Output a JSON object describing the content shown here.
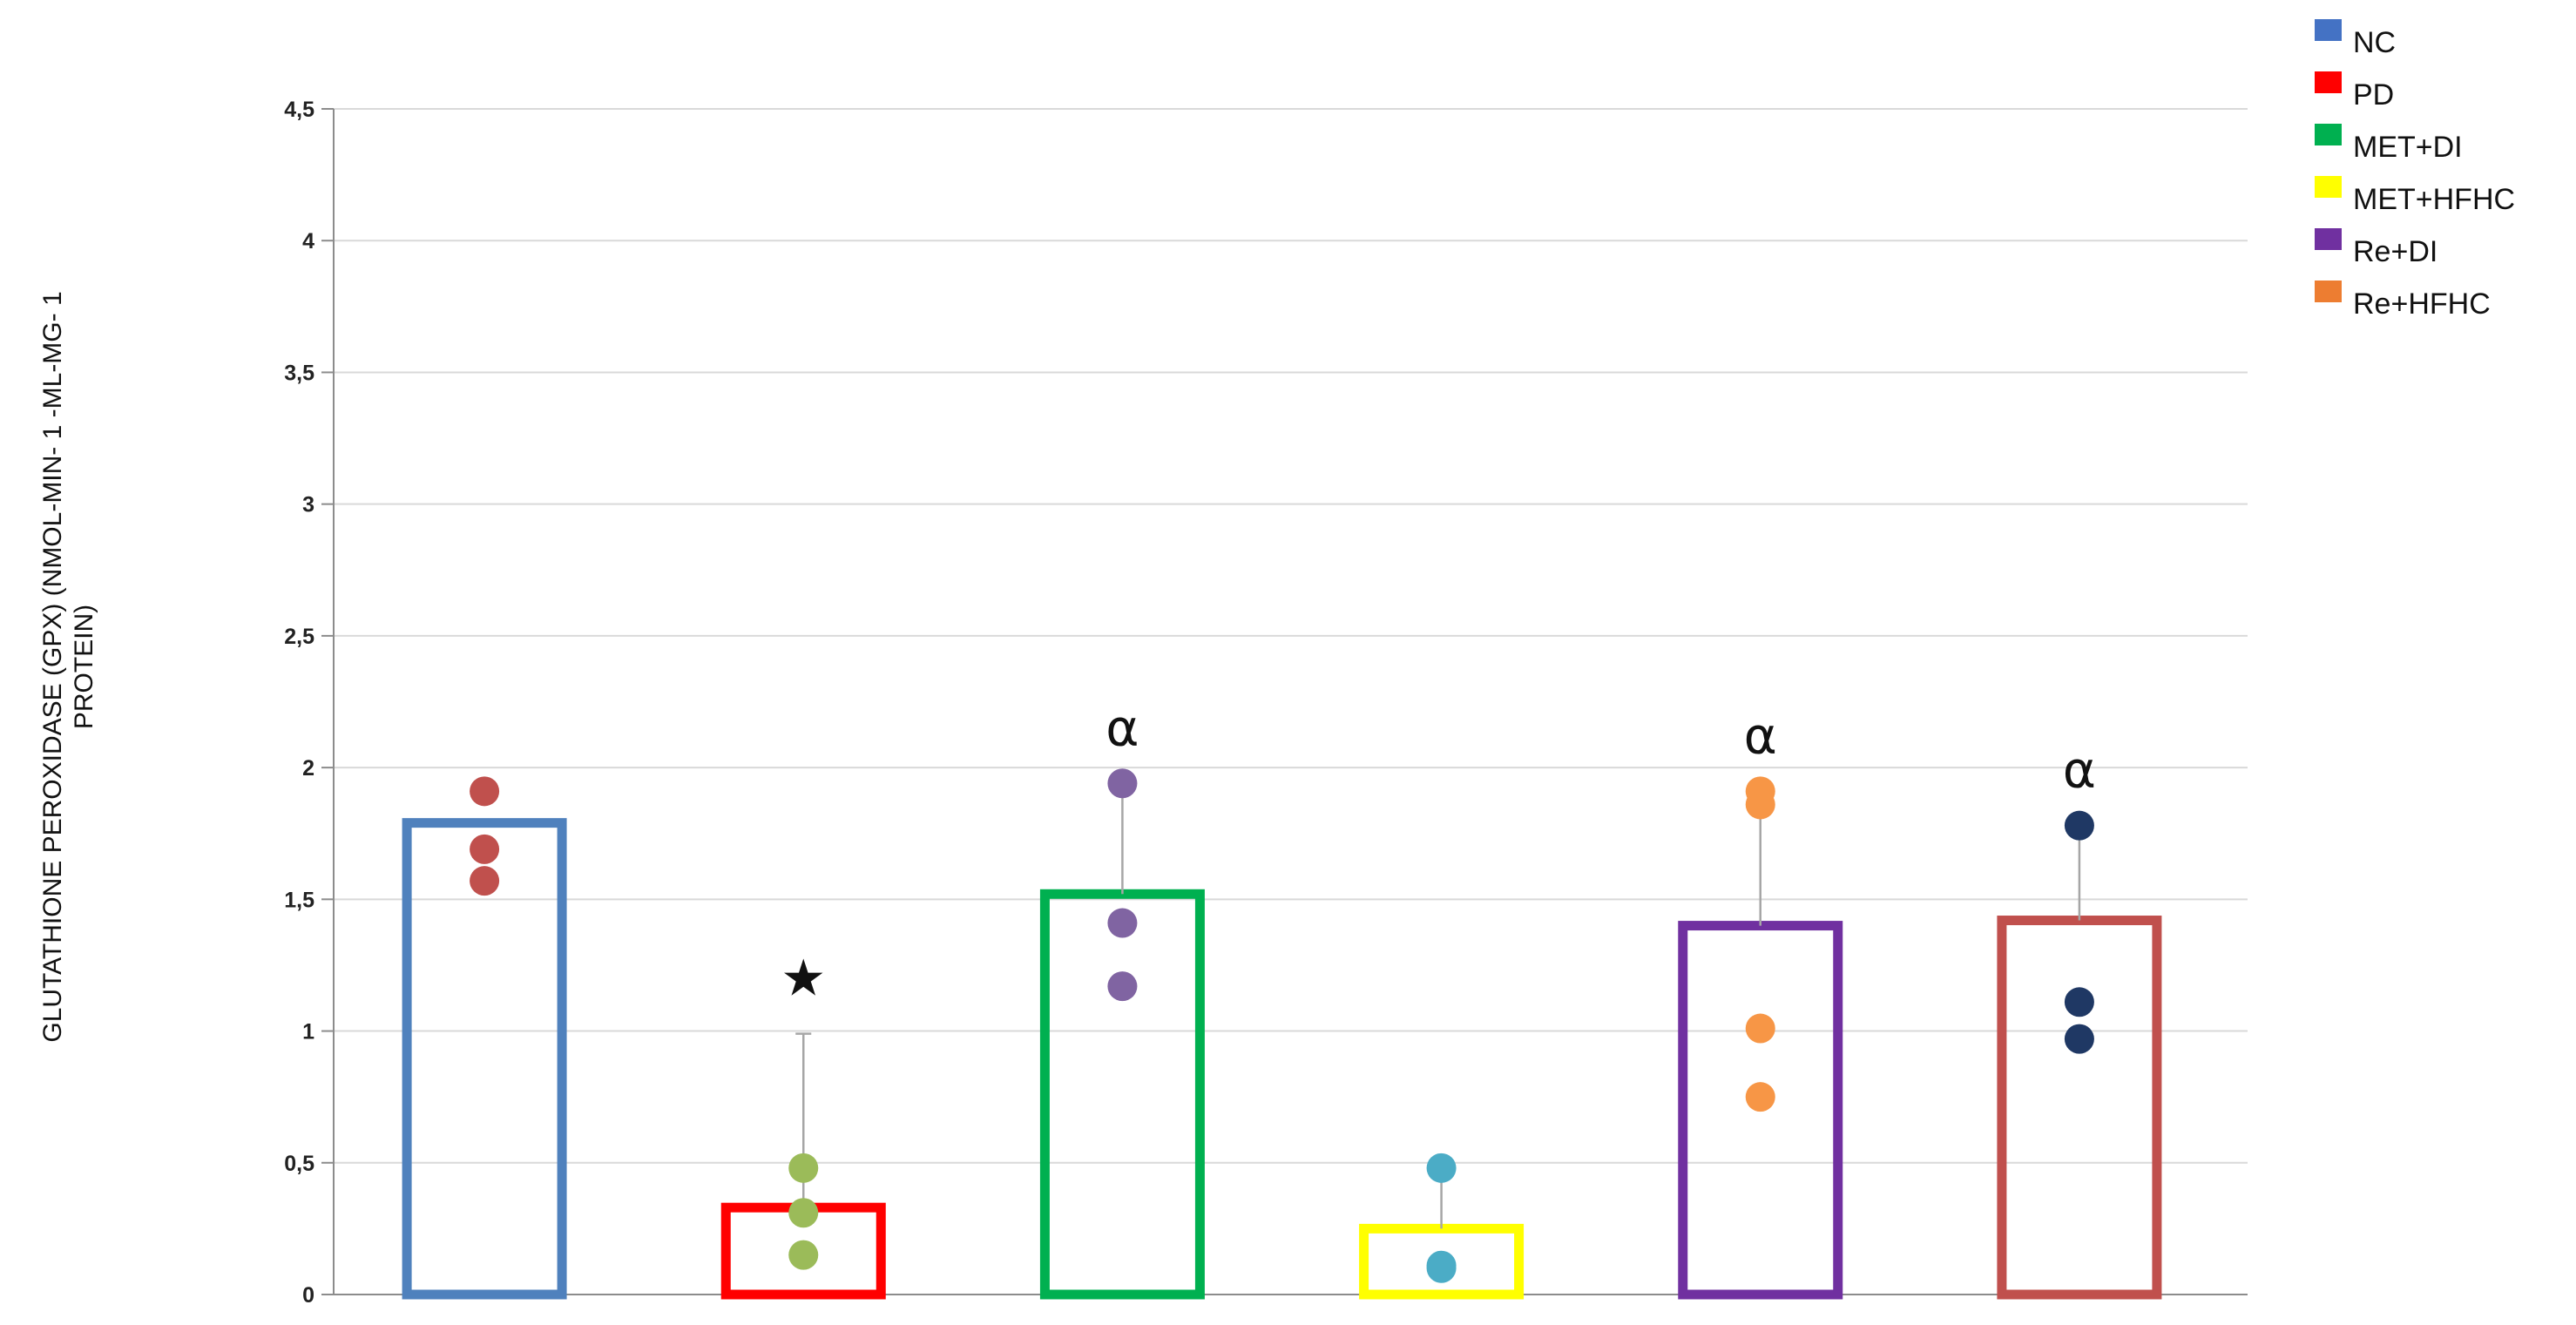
{
  "chart_data": {
    "type": "bar",
    "ylabel_lines": [
      "GLUTATHIONE PEROXIDASE (GPX) (NMOL-MIN- 1 -ML-MG- 1",
      "PROTEIN)"
    ],
    "ylim": [
      0,
      4.5
    ],
    "yticks": [
      0,
      0.5,
      1,
      1.5,
      2,
      2.5,
      3,
      3.5,
      4,
      4.5
    ],
    "ytick_labels": [
      "0",
      "0,5",
      "1",
      "1,5",
      "2",
      "2,5",
      "3",
      "3,5",
      "4",
      "4,5"
    ],
    "grid": true,
    "legend_position": "top-right",
    "legend": [
      {
        "label": "NC",
        "color": "#4472c4"
      },
      {
        "label": "PD",
        "color": "#ff0000"
      },
      {
        "label": "MET+DI",
        "color": "#00b050"
      },
      {
        "label": "MET+HFHC",
        "color": "#ffff00"
      },
      {
        "label": "Re+DI",
        "color": "#7030a0"
      },
      {
        "label": "Re+HFHC",
        "color": "#ed7d31"
      }
    ],
    "groups": [
      {
        "mean": 1.79,
        "bar_color": "#4f81bd",
        "point_color": "#c0504d",
        "points": [
          1.91,
          1.69,
          1.57
        ],
        "error_upper": null,
        "annotation": ""
      },
      {
        "mean": 0.33,
        "bar_color": "#ff0000",
        "point_color": "#9bbb59",
        "points": [
          0.48,
          0.31,
          0.15
        ],
        "error_upper": 0.99,
        "annotation": "★"
      },
      {
        "mean": 1.52,
        "bar_color": "#00b050",
        "point_color": "#8064a2",
        "points": [
          1.94,
          1.41,
          1.17
        ],
        "error_upper": 1.94,
        "annotation": "α"
      },
      {
        "mean": 0.25,
        "bar_color": "#ffff00",
        "point_color": "#4bacc6",
        "points": [
          0.48,
          0.11,
          0.1
        ],
        "error_upper": 0.48,
        "annotation": ""
      },
      {
        "mean": 1.4,
        "bar_color": "#7030a0",
        "point_color": "#f79646",
        "points": [
          1.91,
          1.86,
          1.01,
          0.75
        ],
        "error_upper": 1.91,
        "annotation": "α"
      },
      {
        "mean": 1.42,
        "bar_color": "#c0504d",
        "point_color": "#1f3864",
        "points": [
          1.78,
          1.11,
          0.97
        ],
        "error_upper": 1.78,
        "annotation": "α"
      }
    ]
  }
}
